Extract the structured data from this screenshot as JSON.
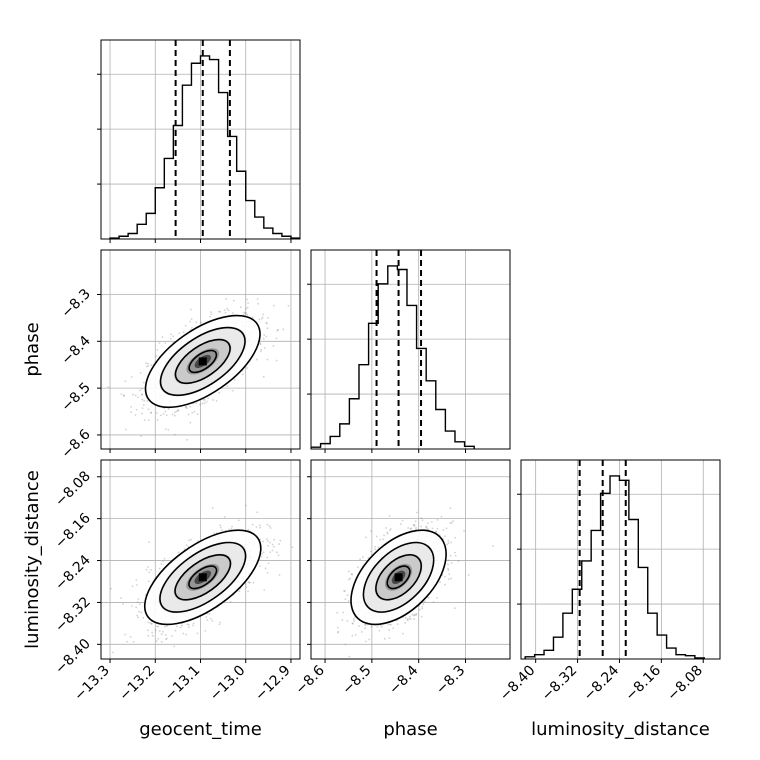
{
  "chart_data": {
    "type": "corner",
    "parameters": [
      "geocent_time",
      "phase",
      "luminosity_distance"
    ],
    "ranges": {
      "geocent_time": [
        -13.32,
        -12.88
      ],
      "phase": [
        -8.63,
        -8.205
      ],
      "luminosity_distance": [
        -8.428,
        -8.048
      ]
    },
    "ticks": {
      "geocent_time": [
        -13.3,
        -13.2,
        -13.1,
        -13.0,
        -12.9
      ],
      "phase": [
        -8.6,
        -8.5,
        -8.4,
        -8.3
      ],
      "luminosity_distance": [
        -8.4,
        -8.32,
        -8.24,
        -8.16,
        -8.08
      ]
    },
    "tick_labels": {
      "geocent_time": [
        "−13.3",
        "−13.2",
        "−13.1",
        "−13.0",
        "−12.9"
      ],
      "phase": [
        "−8.6",
        "−8.5",
        "−8.4",
        "−8.3"
      ],
      "luminosity_distance": [
        "−8.40",
        "−8.32",
        "−8.24",
        "−8.16",
        "−8.08"
      ]
    },
    "quantiles": {
      "geocent_time": [
        -13.155,
        -13.095,
        -13.035
      ],
      "phase": [
        -8.49,
        -8.443,
        -8.395
      ],
      "luminosity_distance": [
        -8.316,
        -8.272,
        -8.228
      ]
    },
    "histograms": {
      "geocent_time": {
        "edges_start": -13.3,
        "bin_width": 0.02,
        "counts": [
          0.5,
          1.5,
          3,
          8,
          14,
          28,
          44,
          62,
          84,
          96,
          100,
          98,
          80,
          56,
          37,
          21,
          12,
          6,
          3,
          1.5,
          0.5
        ]
      },
      "phase": {
        "edges_start": -8.63,
        "bin_width": 0.0205,
        "counts": [
          1,
          3,
          7,
          14,
          28,
          47,
          70,
          92,
          102,
          100,
          80,
          56,
          38,
          22,
          10,
          4,
          1.5
        ]
      },
      "luminosity_distance": {
        "edges_start": -8.42,
        "bin_width": 0.018,
        "counts": [
          1,
          2,
          4,
          10,
          21,
          32,
          45,
          59,
          76,
          84,
          82,
          64,
          42,
          21,
          11,
          5,
          2,
          1.5,
          0.5
        ]
      }
    },
    "contours": [
      {
        "x": "geocent_time",
        "y": "phase",
        "centre": [
          -13.095,
          -8.443
        ],
        "sigma": [
          0.06,
          0.047
        ],
        "rho": 0.6
      },
      {
        "x": "geocent_time",
        "y": "luminosity_distance",
        "centre": [
          -13.095,
          -8.272
        ],
        "sigma": [
          0.06,
          0.044
        ],
        "rho": 0.63
      },
      {
        "x": "phase",
        "y": "luminosity_distance",
        "centre": [
          -8.443,
          -8.272
        ],
        "sigma": [
          0.047,
          0.044
        ],
        "rho": 0.5
      }
    ],
    "xlabels": [
      "geocent_time",
      "phase",
      "luminosity_distance"
    ],
    "ylabels": [
      "",
      "phase",
      "luminosity_distance"
    ],
    "grid": true,
    "colors": {
      "line": "#000000",
      "points": "#7f7f7f",
      "grid": "#b0b0b0"
    }
  }
}
